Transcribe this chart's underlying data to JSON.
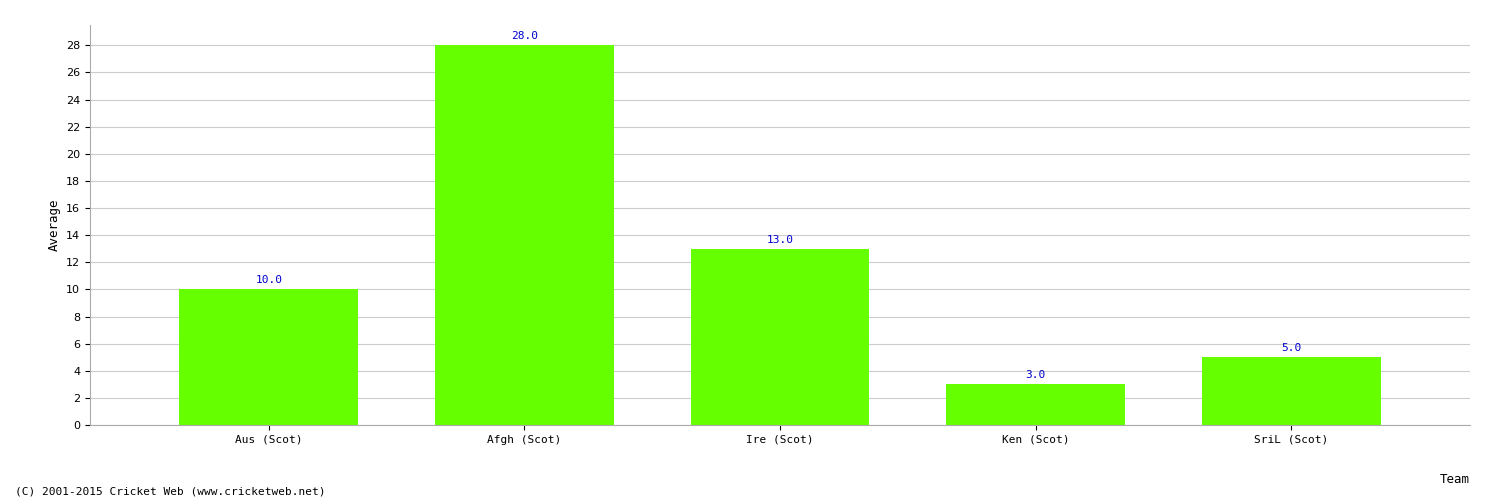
{
  "categories": [
    "Aus (Scot)",
    "Afgh (Scot)",
    "Ire (Scot)",
    "Ken (Scot)",
    "SriL (Scot)"
  ],
  "values": [
    10.0,
    28.0,
    13.0,
    3.0,
    5.0
  ],
  "bar_color": "#66ff00",
  "label_color": "#0000cc",
  "ylabel": "Average",
  "xlabel": "Team",
  "ylim": [
    0,
    29.5
  ],
  "yticks": [
    0,
    2,
    4,
    6,
    8,
    10,
    12,
    14,
    16,
    18,
    20,
    22,
    24,
    26,
    28
  ],
  "grid_color": "#cccccc",
  "bg_color": "#ffffff",
  "footer": "(C) 2001-2015 Cricket Web (www.cricketweb.net)",
  "label_fontsize": 8,
  "tick_fontsize": 8,
  "ylabel_fontsize": 9,
  "xlabel_fontsize": 9,
  "footer_fontsize": 8,
  "bar_width": 0.7
}
